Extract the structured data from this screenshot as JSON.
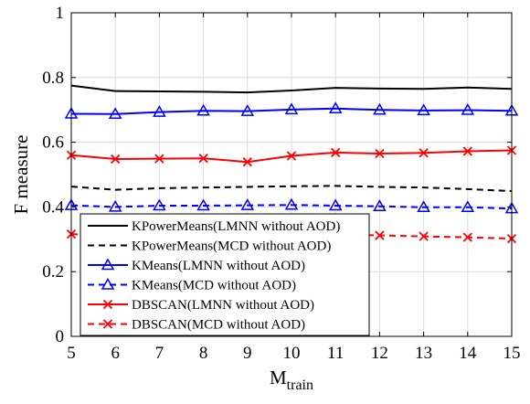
{
  "chart_data": {
    "type": "line",
    "xlabel": "M",
    "xlabel_sub": "train",
    "ylabel": "F measure",
    "xlim": [
      5,
      15
    ],
    "ylim": [
      0,
      1
    ],
    "xticks": [
      5,
      6,
      7,
      8,
      9,
      10,
      11,
      12,
      13,
      14,
      15
    ],
    "yticks": [
      0,
      0.2,
      0.4,
      0.6,
      0.8,
      1
    ],
    "ytick_labels": [
      "0",
      "0.2",
      "0.4",
      "0.6",
      "0.8",
      "1"
    ],
    "grid": true,
    "legend_position": "bottom-left",
    "x": [
      5,
      6,
      7,
      8,
      9,
      10,
      11,
      12,
      13,
      14,
      15
    ],
    "series": [
      {
        "name": "KPowerMeans(LMNN without AOD)",
        "color": "#000000",
        "dash": "solid",
        "marker": "none",
        "values": [
          0.775,
          0.758,
          0.757,
          0.756,
          0.754,
          0.76,
          0.768,
          0.766,
          0.765,
          0.769,
          0.765
        ]
      },
      {
        "name": "KPowerMeans(MCD without AOD)",
        "color": "#000000",
        "dash": "dashed",
        "marker": "none",
        "values": [
          0.463,
          0.453,
          0.458,
          0.46,
          0.462,
          0.464,
          0.465,
          0.462,
          0.46,
          0.455,
          0.449
        ]
      },
      {
        "name": "KMeans(LMNN without AOD)",
        "color": "#0000ff",
        "dash": "solid",
        "marker": "triangle",
        "values": [
          0.688,
          0.687,
          0.693,
          0.697,
          0.696,
          0.701,
          0.704,
          0.7,
          0.698,
          0.699,
          0.697
        ]
      },
      {
        "name": "KMeans(MCD without AOD)",
        "color": "#0000ff",
        "dash": "dashed",
        "marker": "triangle",
        "values": [
          0.405,
          0.4,
          0.404,
          0.404,
          0.405,
          0.406,
          0.404,
          0.402,
          0.399,
          0.399,
          0.395
        ]
      },
      {
        "name": "DBSCAN(LMNN without AOD)",
        "color": "#ff0000",
        "dash": "solid",
        "marker": "x",
        "values": [
          0.56,
          0.548,
          0.549,
          0.55,
          0.539,
          0.558,
          0.568,
          0.565,
          0.567,
          0.572,
          0.575
        ]
      },
      {
        "name": "DBSCAN(MCD without AOD)",
        "color": "#ff0000",
        "dash": "dashed",
        "marker": "x",
        "values": [
          0.316,
          0.312,
          0.318,
          0.318,
          0.317,
          0.316,
          0.315,
          0.312,
          0.309,
          0.306,
          0.302
        ]
      }
    ]
  }
}
